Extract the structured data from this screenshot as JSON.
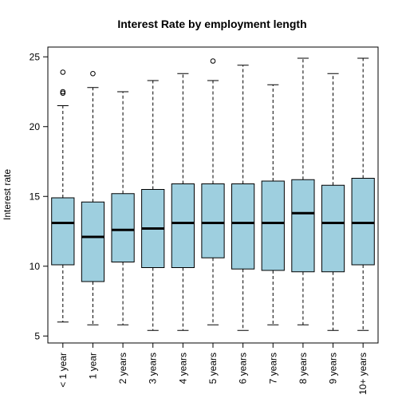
{
  "chart_data": {
    "type": "boxplot",
    "title": "Interest Rate by employment length",
    "xlabel": "",
    "ylabel": "Interest rate",
    "ylim": [
      4.5,
      25.7
    ],
    "yticks": [
      5,
      10,
      15,
      20,
      25
    ],
    "grid": false,
    "legend": "none",
    "box_color": "#9ecfdf",
    "categories": [
      "< 1 year",
      "1 year",
      "2 years",
      "3 years",
      "4 years",
      "5 years",
      "6 years",
      "7 years",
      "8 years",
      "9 years",
      "10+ years"
    ],
    "boxes": [
      {
        "whisker_low": 6.0,
        "q1": 10.1,
        "median": 13.1,
        "q3": 14.9,
        "whisker_high": 21.5,
        "outliers": [
          22.4,
          22.5,
          23.9
        ]
      },
      {
        "whisker_low": 5.8,
        "q1": 8.9,
        "median": 12.1,
        "q3": 14.6,
        "whisker_high": 22.8,
        "outliers": [
          23.8
        ]
      },
      {
        "whisker_low": 5.8,
        "q1": 10.3,
        "median": 12.6,
        "q3": 15.2,
        "whisker_high": 22.5,
        "outliers": []
      },
      {
        "whisker_low": 5.4,
        "q1": 9.9,
        "median": 12.7,
        "q3": 15.5,
        "whisker_high": 23.3,
        "outliers": []
      },
      {
        "whisker_low": 5.4,
        "q1": 9.9,
        "median": 13.1,
        "q3": 15.9,
        "whisker_high": 23.8,
        "outliers": []
      },
      {
        "whisker_low": 5.8,
        "q1": 10.6,
        "median": 13.1,
        "q3": 15.9,
        "whisker_high": 23.3,
        "outliers": [
          24.7
        ]
      },
      {
        "whisker_low": 5.4,
        "q1": 9.8,
        "median": 13.1,
        "q3": 15.9,
        "whisker_high": 24.4,
        "outliers": []
      },
      {
        "whisker_low": 5.8,
        "q1": 9.7,
        "median": 13.1,
        "q3": 16.1,
        "whisker_high": 23.0,
        "outliers": []
      },
      {
        "whisker_low": 5.8,
        "q1": 9.6,
        "median": 13.8,
        "q3": 16.2,
        "whisker_high": 24.9,
        "outliers": []
      },
      {
        "whisker_low": 5.4,
        "q1": 9.6,
        "median": 13.1,
        "q3": 15.8,
        "whisker_high": 23.8,
        "outliers": []
      },
      {
        "whisker_low": 5.4,
        "q1": 10.1,
        "median": 13.1,
        "q3": 16.3,
        "whisker_high": 24.9,
        "outliers": []
      }
    ]
  }
}
